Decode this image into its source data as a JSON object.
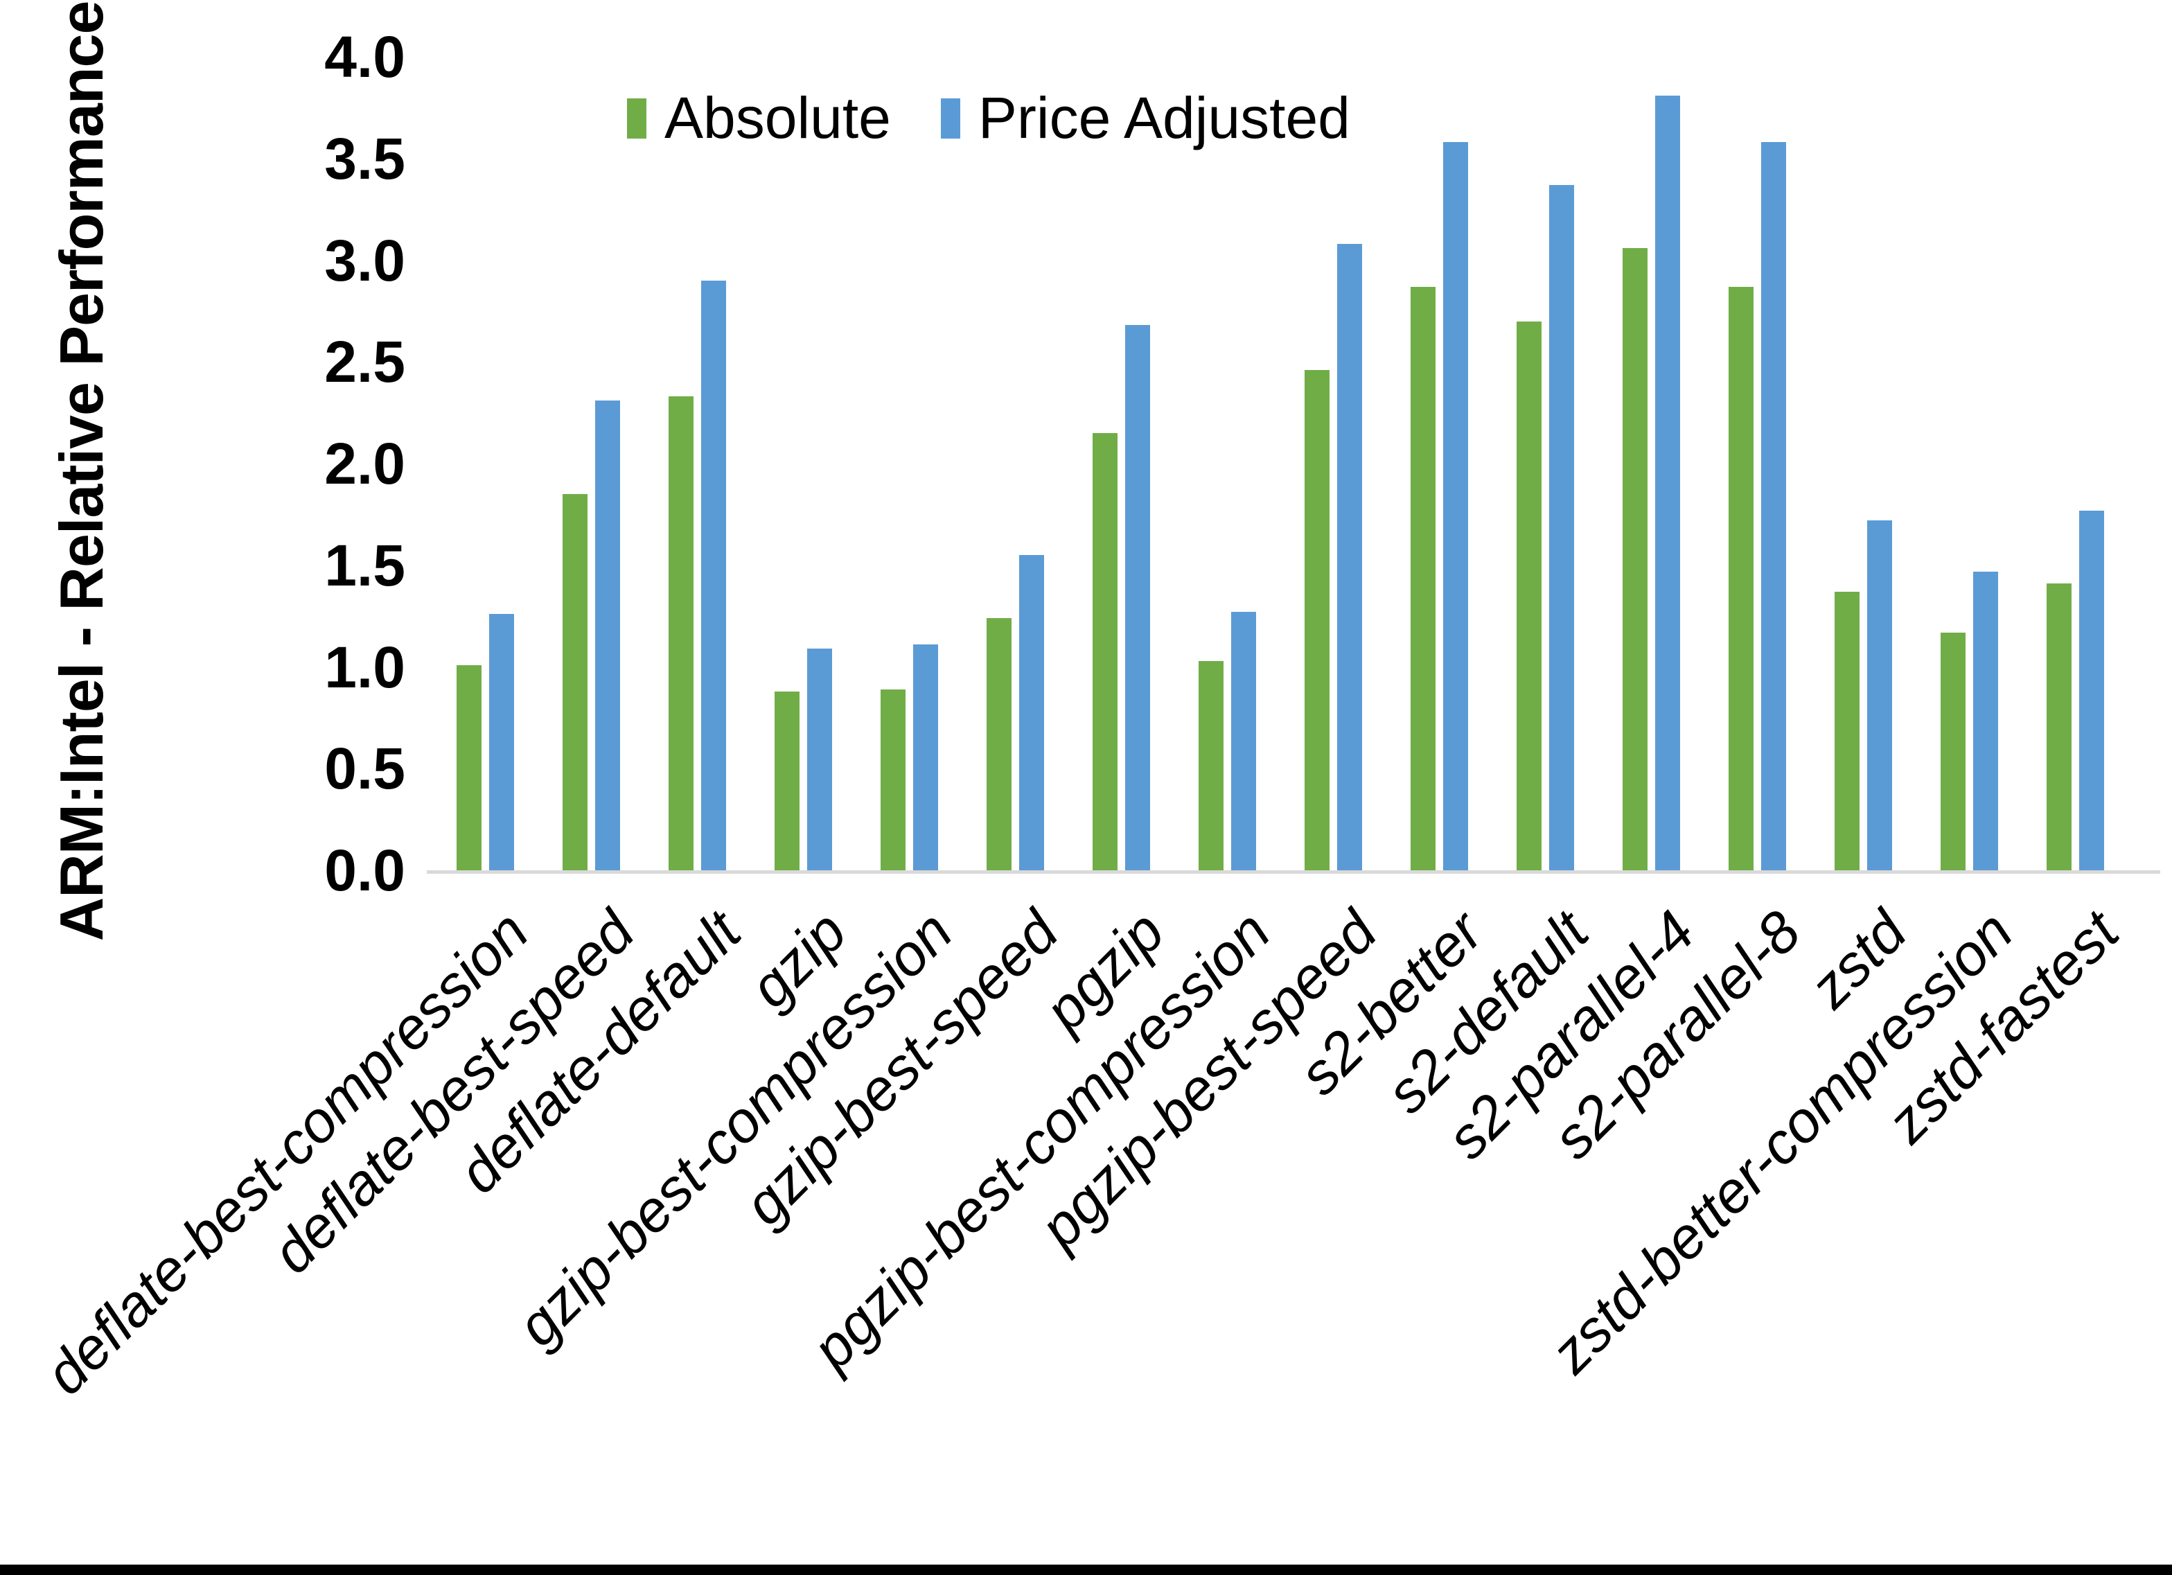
{
  "chart_data": {
    "type": "bar",
    "title": "",
    "xlabel": "",
    "ylabel": "ARM:Intel - Relative Performance",
    "ylim": [
      0.0,
      4.0
    ],
    "ytick_labels": [
      "0.0",
      "0.5",
      "1.0",
      "1.5",
      "2.0",
      "2.5",
      "3.0",
      "3.5",
      "4.0"
    ],
    "grid": false,
    "legend_position": "top-center",
    "categories": [
      "deflate-best-compression",
      "deflate-best-speed",
      "deflate-default",
      "gzip",
      "gzip-best-compression",
      "gzip-best-speed",
      "pgzip",
      "pgzip-best-compression",
      "pgzip-best-speed",
      "s2-better",
      "s2-default",
      "s2-parallel-4",
      "s2-parallel-8",
      "zstd",
      "zstd-better-compression",
      "zstd-fastest"
    ],
    "series": [
      {
        "name": "Absolute",
        "color": "#70AD47",
        "values": [
          1.01,
          1.85,
          2.33,
          0.88,
          0.89,
          1.24,
          2.15,
          1.03,
          2.46,
          2.87,
          2.7,
          3.06,
          2.87,
          1.37,
          1.17,
          1.41
        ]
      },
      {
        "name": "Price Adjusted",
        "color": "#5B9BD5",
        "values": [
          1.26,
          2.31,
          2.9,
          1.09,
          1.11,
          1.55,
          2.68,
          1.27,
          3.08,
          3.58,
          3.37,
          3.81,
          3.58,
          1.72,
          1.47,
          1.77
        ]
      }
    ]
  },
  "colors": {
    "background": "#FFFFFF",
    "axis_line": "#D9D9D9",
    "text": "#000000",
    "bottom_border": "#000000"
  }
}
